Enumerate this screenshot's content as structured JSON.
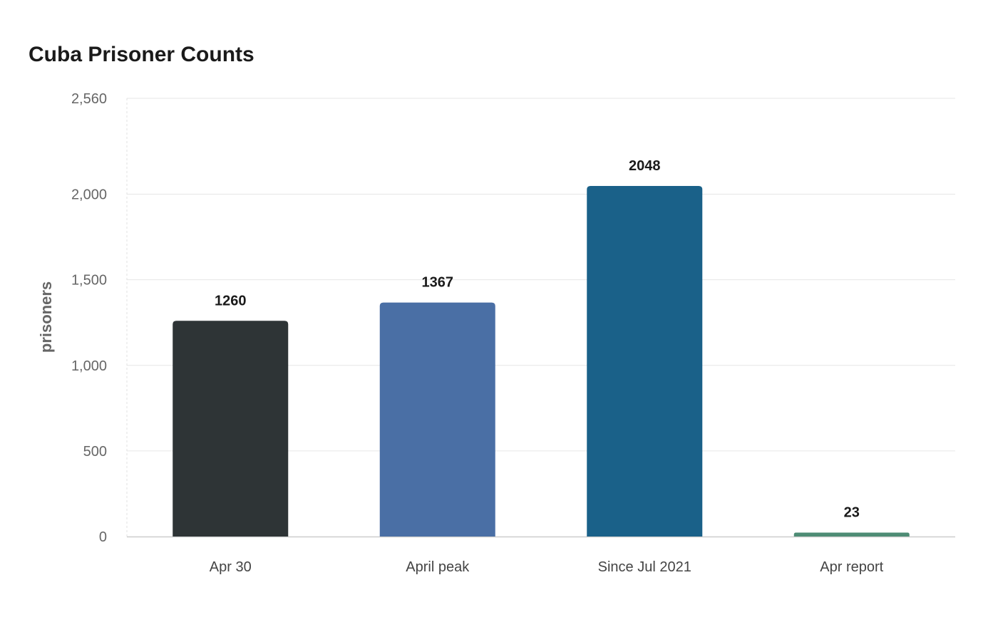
{
  "chart_data": {
    "type": "bar",
    "title": "Cuba Prisoner Counts",
    "xlabel": "",
    "ylabel": "prisoners",
    "categories": [
      "Apr 30",
      "April peak",
      "Since Jul 2021",
      "Apr report"
    ],
    "values": [
      1260,
      1367,
      2048,
      23
    ],
    "data_labels": [
      "1260",
      "1367",
      "2048",
      "23"
    ],
    "bar_colors": [
      "#2e3436",
      "#4a6fa5",
      "#1a6189",
      "#4e8c75"
    ],
    "ylim": [
      0,
      2560
    ],
    "yticks": [
      0,
      500,
      1000,
      1500,
      2000,
      2560
    ],
    "ytick_labels": [
      "0",
      "500",
      "1,000",
      "1,500",
      "2,000",
      "2,560"
    ],
    "grid": true,
    "legend": "none"
  }
}
